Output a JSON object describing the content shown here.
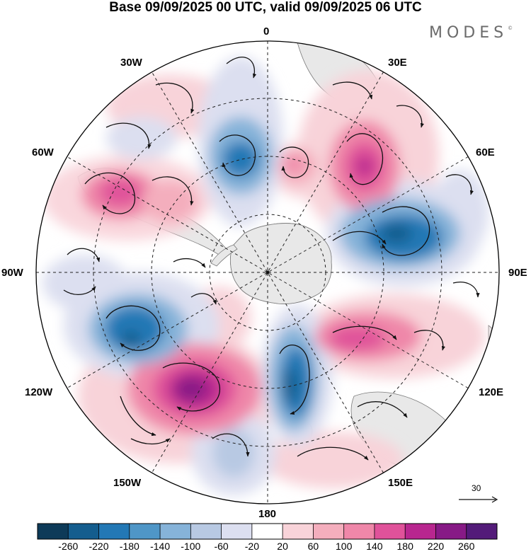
{
  "title": "Base 09/09/2025 00 UTC, valid 09/09/2025 06 UTC",
  "logo": {
    "text": "MODES",
    "mark": "©"
  },
  "longitude_labels": {
    "deg0": "0",
    "deg30e": "30E",
    "deg60e": "60E",
    "deg90e": "90E",
    "deg120e": "120E",
    "deg150e": "150E",
    "deg180": "180",
    "deg150w": "150W",
    "deg120w": "120W",
    "deg90w": "90W",
    "deg60w": "60W",
    "deg30w": "30W"
  },
  "reference_vector": {
    "label": "30",
    "icon": "arrow-right-icon"
  },
  "colorbar": {
    "ticks": [
      "-260",
      "-220",
      "-180",
      "-140",
      "-100",
      "-60",
      "-20",
      "20",
      "60",
      "100",
      "140",
      "180",
      "220",
      "260"
    ],
    "colors": [
      "#0d3a58",
      "#145d8e",
      "#2378b5",
      "#4f96c7",
      "#86b3d9",
      "#b8c9e3",
      "#dcdff0",
      "#ffffff",
      "#f8d3d9",
      "#f4aebd",
      "#ef87a9",
      "#e0529a",
      "#b8268f",
      "#871a86",
      "#531b79"
    ]
  },
  "palette": {
    "land": "#e8e8e8",
    "coast": "#6b6b6b",
    "grid": "#222222",
    "vector": "#111111"
  }
}
